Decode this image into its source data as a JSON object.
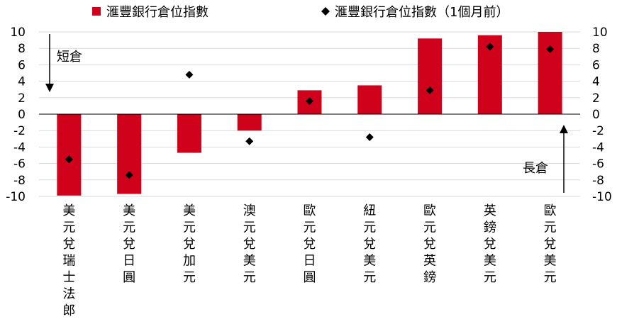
{
  "chart_data": {
    "type": "bar",
    "categories": [
      "美元兌瑞士法郎",
      "美元兌日圓",
      "美元兌加元",
      "澳元兌美元",
      "歐元兌日圓",
      "紐元兌美元",
      "歐元兌英鎊",
      "英鎊兌美元",
      "歐元兌美元"
    ],
    "series": [
      {
        "name": "滙豐銀行倉位指數",
        "type": "bar",
        "color": "#d0021b",
        "values": [
          -9.9,
          -9.7,
          -4.7,
          -2.0,
          2.9,
          3.5,
          9.2,
          9.6,
          10.0
        ]
      },
      {
        "name": "滙豐銀行倉位指數（1個月前）",
        "type": "scatter",
        "marker": "diamond",
        "color": "#000000",
        "values": [
          -5.5,
          -7.4,
          4.8,
          -3.3,
          1.6,
          -2.8,
          2.9,
          8.2,
          7.9
        ]
      }
    ],
    "ylim": [
      -10,
      10
    ],
    "yticks": [
      10,
      8,
      6,
      4,
      2,
      0,
      -2,
      -4,
      -6,
      -8,
      -10
    ],
    "ytick_labels": [
      "10",
      "8",
      "6",
      "4",
      "2",
      "0",
      "-2",
      "-4",
      "-6",
      "-8",
      "-10"
    ],
    "grid": true,
    "legend_position": "top",
    "annotations": {
      "short": "短倉",
      "long": "長倉"
    }
  }
}
